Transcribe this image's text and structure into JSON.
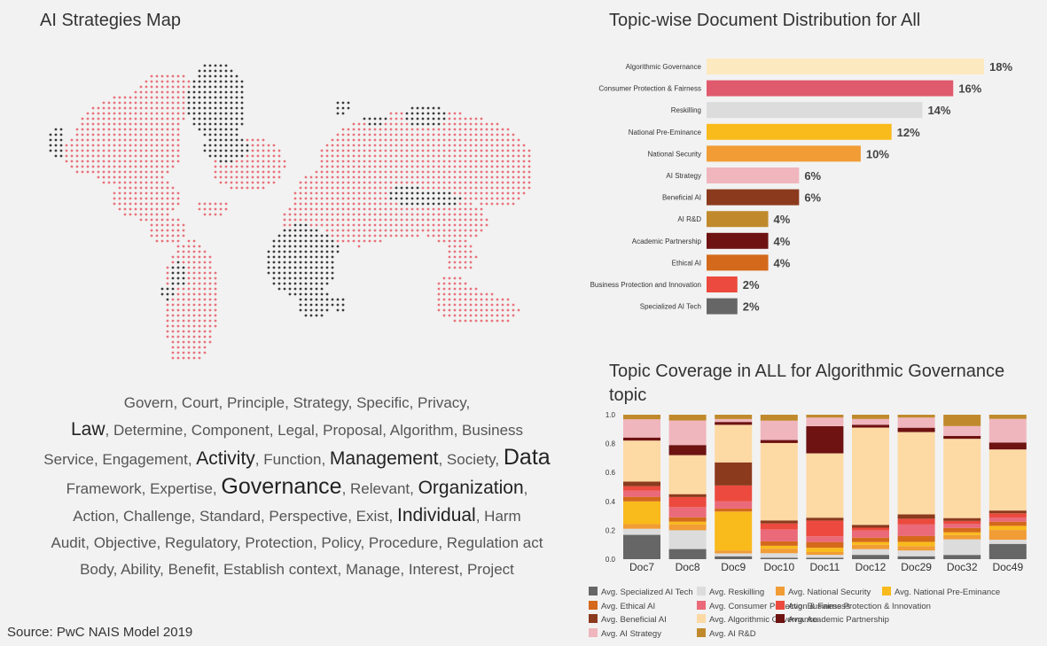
{
  "titles": {
    "map": "AI Strategies Map",
    "distribution": "Topic-wise Document Distribution for All",
    "coverage": "Topic Coverage in ALL for Algorithmic Governance topic"
  },
  "word_cloud": {
    "lines": [
      [
        [
          "Govern, Court, Principle, Strategy, Specific, Privacy,",
          "n"
        ]
      ],
      [
        [
          "Law",
          "b"
        ],
        [
          ", Determine, Component, Legal, Proposal, Algorithm, Business",
          "n"
        ]
      ],
      [
        [
          "Service, Engagement, ",
          "n"
        ],
        [
          "Activity",
          "b"
        ],
        [
          ", Function, ",
          "n"
        ],
        [
          "Management",
          "b"
        ],
        [
          ", Society, ",
          "n"
        ],
        [
          "Data",
          "h"
        ]
      ],
      [
        [
          "Framework, Expertise, ",
          "n"
        ],
        [
          "Governance",
          "h"
        ],
        [
          ", Relevant, ",
          "n"
        ],
        [
          "Organization",
          "b"
        ],
        [
          ",",
          "n"
        ]
      ],
      [
        [
          "Action, Challenge, Standard, Perspective, Exist, ",
          "n"
        ],
        [
          "Individual",
          "b"
        ],
        [
          ", Harm",
          "n"
        ]
      ],
      [
        [
          "Audit, Objective, Regulatory, Protection, Policy, Procedure, Regulation act",
          "n"
        ]
      ],
      [
        [
          "Body, Ability, Benefit, Establish context, Manage, Interest, Project",
          "n"
        ]
      ]
    ]
  },
  "source": "Source: PwC NAIS Model 2019",
  "map_colors": {
    "highlight": "#e8727a",
    "dark": "#3a3a3a"
  },
  "chart_data": [
    {
      "type": "bar",
      "orientation": "horizontal",
      "title": "Topic-wise Document Distribution for All",
      "categories": [
        "Algorithmic Governance",
        "Consumer Protection & Fairness",
        "Reskilling",
        "National Pre-Eminance",
        "National Security",
        "AI Strategy",
        "Beneficial AI",
        "AI R&D",
        "Academic Partnership",
        "Ethical AI",
        "Business Protection and Innovation",
        "Specialized AI Tech"
      ],
      "values": [
        18,
        16,
        14,
        12,
        10,
        6,
        6,
        4,
        4,
        4,
        2,
        2
      ],
      "labels": [
        "18%",
        "16%",
        "14%",
        "12%",
        "10%",
        "6%",
        "6%",
        "4%",
        "4%",
        "4%",
        "2%",
        "2%"
      ],
      "colors": [
        "#fde9bf",
        "#e05a6e",
        "#dcdcdc",
        "#f9ba1c",
        "#f19c35",
        "#f0b6bd",
        "#8b3a1d",
        "#c08a2c",
        "#6e1212",
        "#d4691b",
        "#ec4a3e",
        "#666666"
      ]
    },
    {
      "type": "bar",
      "stacked": true,
      "title": "Topic Coverage in ALL for Algorithmic Governance topic",
      "categories": [
        "Doc7",
        "Doc8",
        "Doc9",
        "Doc10",
        "Doc11",
        "Doc12",
        "Doc29",
        "Doc32",
        "Doc49"
      ],
      "yticks": [
        "0.0",
        "0.2",
        "0.4",
        "0.6",
        "0.8",
        "1.0"
      ],
      "ylim": [
        0,
        1
      ],
      "series": [
        {
          "name": "Avg. Specialized AI Tech",
          "color": "#666666",
          "values": [
            0.16,
            0.07,
            0.02,
            0.01,
            0.01,
            0.03,
            0.02,
            0.03,
            0.11
          ]
        },
        {
          "name": "Avg. Reskilling",
          "color": "#dcdcdc",
          "values": [
            0.04,
            0.13,
            0.02,
            0.03,
            0.02,
            0.04,
            0.04,
            0.11,
            0.03
          ]
        },
        {
          "name": "Avg. National Security",
          "color": "#f19c35",
          "values": [
            0.03,
            0.04,
            0.02,
            0.03,
            0.02,
            0.03,
            0.03,
            0.03,
            0.07
          ]
        },
        {
          "name": "Avg. National Pre-Eminance",
          "color": "#f9ba1c",
          "values": [
            0.15,
            0.02,
            0.27,
            0.02,
            0.03,
            0.02,
            0.03,
            0.02,
            0.03
          ]
        },
        {
          "name": "Avg. Ethical AI",
          "color": "#d4691b",
          "values": [
            0.03,
            0.03,
            0.02,
            0.03,
            0.04,
            0.03,
            0.04,
            0.03,
            0.03
          ]
        },
        {
          "name": "Avg. Consumer Protection & Fairness",
          "color": "#ea6a79",
          "values": [
            0.04,
            0.07,
            0.05,
            0.08,
            0.04,
            0.05,
            0.08,
            0.03,
            0.03
          ]
        },
        {
          "name": "Avg. Business Protection & Innovation",
          "color": "#ec4a3e",
          "values": [
            0.03,
            0.07,
            0.11,
            0.04,
            0.11,
            0.02,
            0.04,
            0.02,
            0.03
          ]
        },
        {
          "name": "Avg. Beneficial AI",
          "color": "#8b3a1d",
          "values": [
            0.03,
            0.02,
            0.16,
            0.02,
            0.02,
            0.02,
            0.03,
            0.02,
            0.02
          ]
        },
        {
          "name": "Avg. Algorithmic Governance",
          "color": "#fdd9a4",
          "values": [
            0.27,
            0.27,
            0.26,
            0.52,
            0.45,
            0.68,
            0.57,
            0.56,
            0.44
          ]
        },
        {
          "name": "Avg. Academic Partnership",
          "color": "#6e1212",
          "values": [
            0.02,
            0.07,
            0.02,
            0.02,
            0.19,
            0.02,
            0.03,
            0.02,
            0.05
          ]
        },
        {
          "name": "Avg. AI Strategy",
          "color": "#f0b6bd",
          "values": [
            0.12,
            0.17,
            0.02,
            0.13,
            0.06,
            0.04,
            0.07,
            0.07,
            0.17
          ]
        },
        {
          "name": "Avg. AI R&D",
          "color": "#c08a2c",
          "values": [
            0.03,
            0.04,
            0.03,
            0.04,
            0.02,
            0.03,
            0.02,
            0.08,
            0.03
          ]
        }
      ]
    }
  ],
  "legend_order": [
    [
      "Avg. Specialized AI Tech",
      "Avg. Reskilling",
      "Avg. National Security",
      "Avg. National Pre-Eminance"
    ],
    [
      "Avg. Ethical AI",
      "Avg. Consumer Protection & Fairness",
      "Avg. Business Protection & Innovation"
    ],
    [
      "Avg. Beneficial AI",
      "Avg. Algorithmic Governance",
      "Avg. Academic Partnership"
    ],
    [
      "Avg. AI Strategy",
      "Avg. AI R&D"
    ]
  ]
}
